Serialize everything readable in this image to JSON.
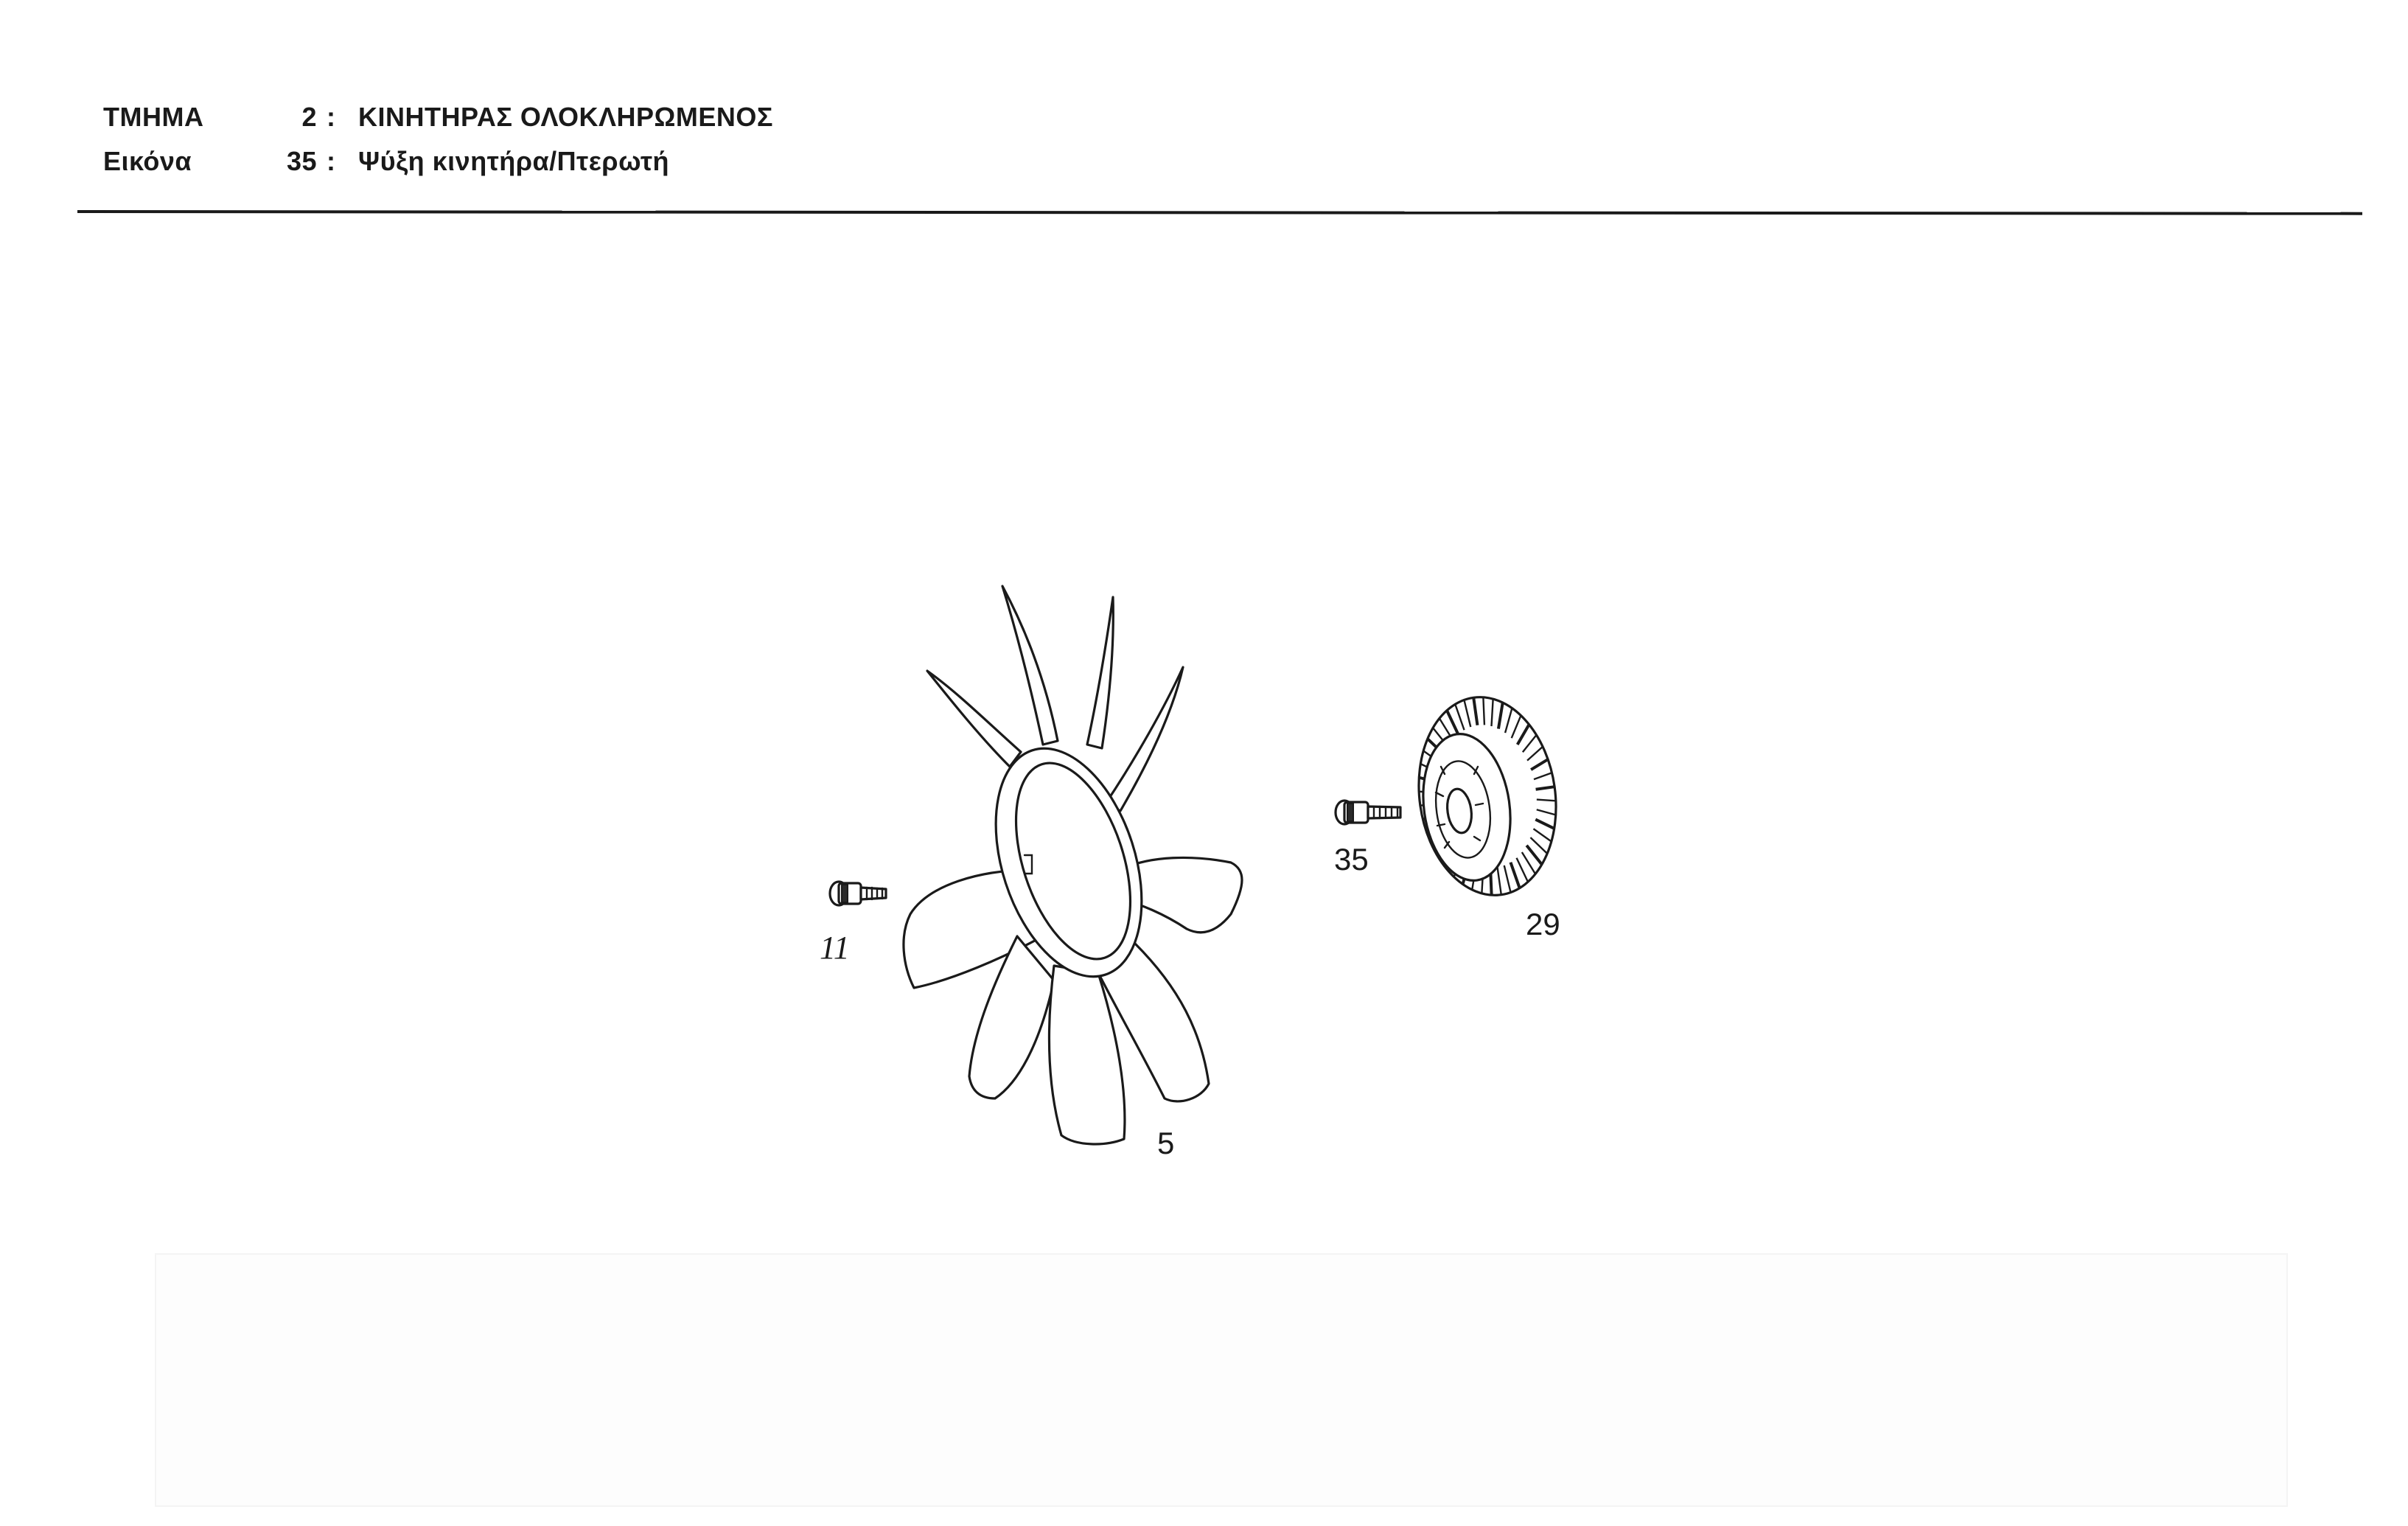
{
  "header": {
    "section_label": "ΤΜΗΜΑ",
    "section_number": "2",
    "section_separator": ":",
    "section_title": "ΚΙΝΗΤΗΡΑΣ  ΟΛΟΚΛΗΡΩΜΕΝΟΣ",
    "figure_label": "Εικόνα",
    "figure_number": "35",
    "figure_separator": ":",
    "figure_title": "Ψύξη κινητήρα/Πτερωτή"
  },
  "parts": [
    {
      "id": "fan",
      "callout": "5",
      "icon": "fan-blade-icon"
    },
    {
      "id": "bolt-left",
      "callout": "11",
      "icon": "bolt-icon"
    },
    {
      "id": "bolt-right",
      "callout": "35",
      "icon": "bolt-icon"
    },
    {
      "id": "viscous-clutch",
      "callout": "29",
      "icon": "fan-clutch-icon"
    }
  ],
  "colors": {
    "ink": "#1a1a1a",
    "paper": "#ffffff"
  }
}
